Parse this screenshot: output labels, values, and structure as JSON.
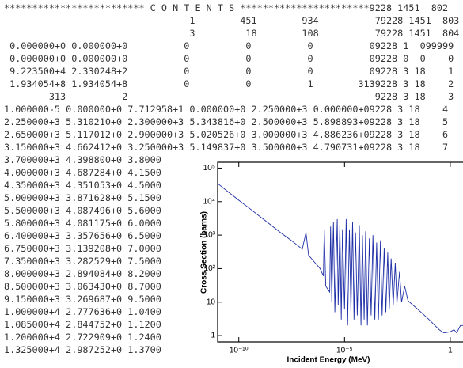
{
  "text_lines": [
    "************************* C O N T E N T S ***********************9228 1451  802",
    "                                 1        451        934          79228 1451  803",
    "                                 3         18        108          79228 1451  804",
    " 0.000000+0 0.000000+0          0          0          0          09228 1  099999",
    " 0.000000+0 0.000000+0          0          0          0          09228 0  0    0",
    " 9.223500+4 2.330248+2          0          0          0          09228 3 18    1",
    " 1.934054+8 1.934054+8          0          0          1        3139228 3 18    2",
    "        313          2                                            9228 3 18    3",
    "1.000000-5 0.000000+0 7.712958+1 0.000000+0 2.250000+3 0.000000+09228 3 18    4",
    "2.250000+3 5.310210+0 2.300000+3 5.343816+0 2.500000+3 5.898893+09228 3 18    5",
    "2.650000+3 5.117012+0 2.900000+3 5.020526+0 3.000000+3 4.886236+09228 3 18    6",
    "3.150000+3 4.662412+0 3.250000+3 5.149837+0 3.500000+3 4.790731+09228 3 18    7",
    "3.700000+3 4.398800+0 3.8000",
    "4.000000+3 4.687284+0 4.1500",
    "4.350000+3 4.351053+0 4.5000",
    "5.000000+3 3.871628+0 5.1500",
    "5.500000+3 4.087496+0 5.6000",
    "5.800000+3 4.081175+0 6.0000",
    "6.400000+3 3.357656+0 6.5000",
    "6.750000+3 3.139208+0 7.0000",
    "7.350000+3 3.282529+0 7.5000",
    "8.000000+3 2.894084+0 8.2000",
    "8.500000+3 3.063430+0 8.7000",
    "9.150000+3 3.269687+0 9.5000",
    "1.000000+4 2.777636+0 1.0400",
    "1.085000+4 2.844752+0 1.1200",
    "1.200000+4 2.722909+0 1.2400",
    "1.325000+4 2.987252+0 1.3700"
  ],
  "chart_data": {
    "type": "line",
    "xlabel": "Incident Energy (MeV)",
    "ylabel": "Cross Section (barns)",
    "xscale": "log",
    "yscale": "log",
    "xlim": [
      1e-11,
      4
    ],
    "ylim": [
      0.65,
      150000
    ],
    "xticks": [
      {
        "value": 1e-10,
        "label": "10⁻¹⁰"
      },
      {
        "value": 1e-05,
        "label": "10⁻⁵"
      },
      1
    ],
    "yticks": [
      1,
      10,
      {
        "value": 100,
        "label": "10²"
      },
      {
        "value": 1000,
        "label": "10³"
      },
      {
        "value": 10000,
        "label": "10⁴"
      },
      {
        "value": 100000,
        "label": "10⁵"
      }
    ],
    "x": [
      1e-11,
      3e-11,
      1e-10,
      3e-10,
      1e-09,
      3e-09,
      1e-08,
      3e-08,
      1e-07,
      1.5e-07,
      2e-07,
      4e-07,
      7e-07,
      1e-06,
      1.1e-06,
      1.3e-06,
      2e-06,
      2.2e-06,
      2.5e-06,
      3e-06,
      3.5e-06,
      4.5e-06,
      5e-06,
      6e-06,
      7e-06,
      8e-06,
      1e-05,
      1.2e-05,
      1.4e-05,
      1.7e-05,
      2e-05,
      2.4e-05,
      2.8e-05,
      3.3e-05,
      4e-05,
      5e-05,
      6e-05,
      7e-05,
      8.5e-05,
      0.0001,
      0.00012,
      0.00015,
      0.00018,
      0.00022,
      0.00027,
      0.00033,
      0.0004,
      0.0005,
      0.0006,
      0.00075,
      0.0009,
      0.0011,
      0.0013,
      0.0016,
      0.002,
      0.0025,
      0.003,
      0.004,
      0.005,
      0.007,
      0.01,
      0.03,
      0.1,
      0.3,
      0.5,
      1,
      1.5,
      2,
      3,
      4
    ],
    "series": [
      {
        "color": "#1f2fa8",
        "values": [
          35000,
          20000,
          11000,
          6500,
          3600,
          2100,
          1150,
          700,
          380,
          1200,
          250,
          150,
          100,
          60,
          1500,
          30,
          20,
          1800,
          10,
          2500,
          5,
          3000,
          8,
          2000,
          3,
          1500,
          6,
          3000,
          2,
          1500,
          5,
          2500,
          3,
          1200,
          4,
          2000,
          2,
          1000,
          3,
          1300,
          2,
          800,
          4,
          1000,
          3,
          600,
          3,
          700,
          4,
          400,
          5,
          300,
          6,
          200,
          8,
          150,
          9,
          80,
          10,
          30,
          11,
          6,
          3,
          1.5,
          1.2,
          1.3,
          1.5,
          1.2,
          2,
          2
        ]
      }
    ]
  }
}
